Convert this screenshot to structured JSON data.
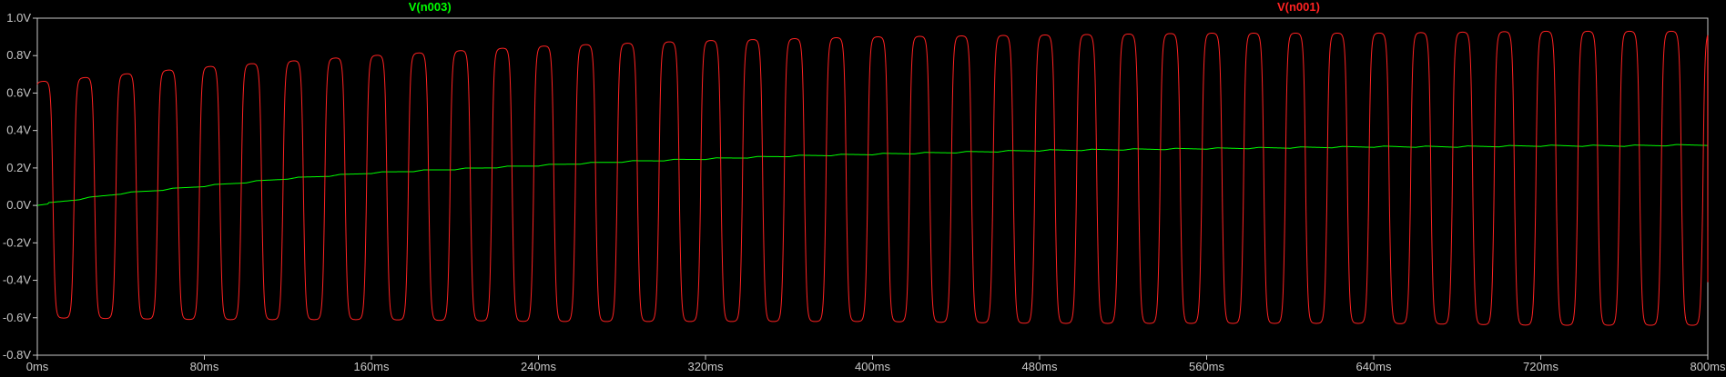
{
  "chart_data": {
    "type": "line",
    "title": "",
    "xlabel": "",
    "ylabel": "",
    "x_unit": "ms",
    "y_unit": "V",
    "xlim": [
      0,
      800
    ],
    "ylim": [
      -0.8,
      1.0
    ],
    "x_ticks": [
      "0ms",
      "80ms",
      "160ms",
      "240ms",
      "320ms",
      "400ms",
      "480ms",
      "560ms",
      "640ms",
      "720ms",
      "800ms"
    ],
    "y_ticks": [
      "1.0V",
      "0.8V",
      "0.6V",
      "0.4V",
      "0.2V",
      "0.0V",
      "-0.2V",
      "-0.4V",
      "-0.6V",
      "-0.8V"
    ],
    "grid": false,
    "background": "#000000",
    "axis_color": "#c8c8c8",
    "legend_placement": "top",
    "series": [
      {
        "name": "V(n003)",
        "color": "#00ff00",
        "description_values": {
          "t_ms": [
            0,
            40,
            80,
            120,
            160,
            200,
            240,
            280,
            320,
            360,
            400,
            440,
            480,
            520,
            560,
            600,
            640,
            680,
            720,
            760,
            800
          ],
          "v": [
            0.0,
            0.06,
            0.1,
            0.14,
            0.17,
            0.19,
            0.21,
            0.23,
            0.245,
            0.26,
            0.27,
            0.28,
            0.29,
            0.295,
            0.3,
            0.305,
            0.31,
            0.31,
            0.315,
            0.315,
            0.32
          ]
        },
        "ripple_period_ms": 20.0,
        "ripple_amplitude_v": 0.007
      },
      {
        "name": "V(n001)",
        "color": "#ff2222",
        "waveform": "clipped sine",
        "period_ms": 20.0,
        "cycles": 40,
        "peak_v": {
          "t_ms": [
            0,
            80,
            160,
            240,
            320,
            400,
            480,
            560,
            640,
            720,
            800
          ],
          "v": [
            0.66,
            0.74,
            0.8,
            0.85,
            0.88,
            0.9,
            0.91,
            0.92,
            0.92,
            0.93,
            0.93
          ]
        },
        "trough_v": {
          "t_ms": [
            0,
            80,
            160,
            240,
            320,
            400,
            480,
            560,
            640,
            720,
            800
          ],
          "v": [
            -0.6,
            -0.61,
            -0.61,
            -0.62,
            -0.62,
            -0.62,
            -0.63,
            -0.63,
            -0.63,
            -0.64,
            -0.64
          ]
        },
        "start_v": 0.46,
        "end_v": -0.41
      }
    ]
  }
}
